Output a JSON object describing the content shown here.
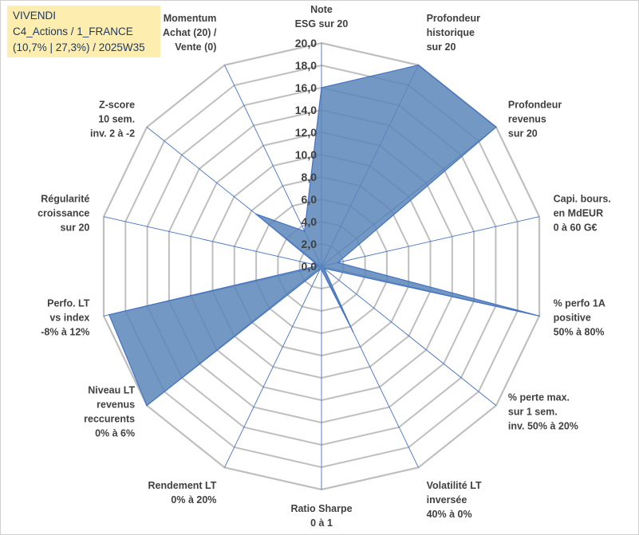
{
  "title_lines": [
    "VIVENDI",
    "C4_Actions / 1_FRANCE",
    "(10,7% | 27,3%) / 2025W35"
  ],
  "chart_data": {
    "type": "radar",
    "title": "VIVENDI",
    "subtitle": "C4_Actions / 1_FRANCE (10,7% | 27,3%) / 2025W35",
    "rlim": [
      0,
      20
    ],
    "r_ticks": [
      "0,0",
      "2,0",
      "4,0",
      "6,0",
      "8,0",
      "10,0",
      "12,0",
      "14,0",
      "16,0",
      "18,0",
      "20,0"
    ],
    "grid": true,
    "categories": [
      [
        "Note",
        "ESG sur 20"
      ],
      [
        "Profondeur",
        "historique",
        "sur 20"
      ],
      [
        "Profondeur",
        "revenus",
        "sur 20"
      ],
      [
        "Capi. bours.",
        "en MdEUR",
        "0 à 60 G€"
      ],
      [
        "% perfo 1A",
        "positive",
        "50% à 80%"
      ],
      [
        "% perte max.",
        "sur 1 sem.",
        "inv. 50% à 20%"
      ],
      [
        "Volatilité LT",
        "inversée",
        "40% à 0%"
      ],
      [
        "Ratio Sharpe",
        "0 à 1"
      ],
      [
        "Rendement LT",
        "0% à 20%"
      ],
      [
        "Niveau LT",
        "revenus",
        "reccurents",
        "0% à 6%"
      ],
      [
        "Perfo. LT",
        "vs index",
        "-8% à 12%"
      ],
      [
        "Régularité",
        "croissance",
        "sur 20"
      ],
      [
        "Z-score",
        "10 sem.",
        "inv. 2 à -2"
      ],
      [
        "Momentum",
        "Achat (20) /",
        "Vente (0)"
      ]
    ],
    "series": [
      {
        "values": [
          16,
          20,
          20,
          1.5,
          20,
          0.3,
          6.5,
          0.3,
          0.3,
          20,
          19.5,
          0.3,
          7.5,
          3.5
        ],
        "color": "#4a74a8"
      }
    ],
    "colors": {
      "fill": "#5b86b8",
      "stroke": "#4472c4",
      "grid": "#bfbfbf",
      "spoke": "#4472c4"
    }
  }
}
